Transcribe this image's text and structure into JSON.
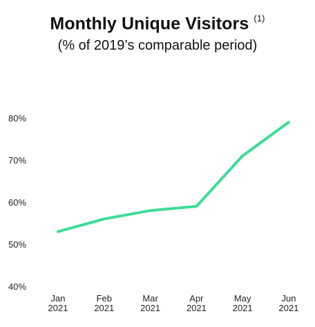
{
  "header": {
    "title": "Monthly Unique Visitors",
    "footnote": "(1)",
    "subtitle": "(% of 2019’s comparable period)"
  },
  "chart_data": {
    "type": "line",
    "title": "Monthly Unique Visitors (1)",
    "subtitle": "(% of 2019’s comparable period)",
    "categories": [
      [
        "Jan",
        "2021"
      ],
      [
        "Feb",
        "2021"
      ],
      [
        "Mar",
        "2021"
      ],
      [
        "Apr",
        "2021"
      ],
      [
        "May",
        "2021"
      ],
      [
        "Jun",
        "2021"
      ]
    ],
    "series": [
      {
        "values": [
          53,
          56,
          58,
          59,
          71,
          79
        ],
        "color": "#3ddc97"
      }
    ],
    "yticks": [
      "40%",
      "50%",
      "60%",
      "70%",
      "80%"
    ],
    "ytick_values": [
      40,
      50,
      60,
      70,
      80
    ],
    "ylim": [
      40,
      80
    ],
    "grid": false,
    "legend": "none",
    "xlabel": "",
    "ylabel": ""
  }
}
